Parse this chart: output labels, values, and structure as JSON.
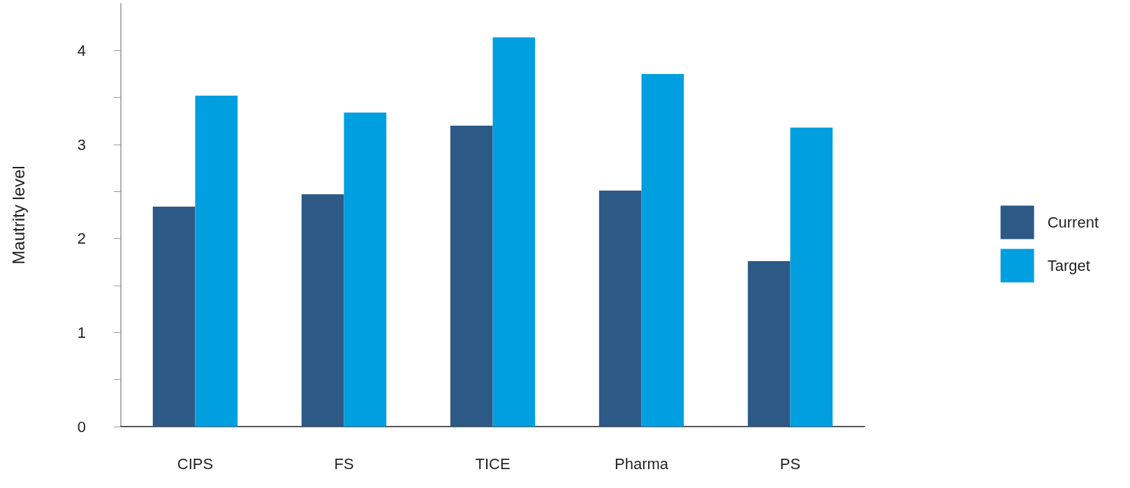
{
  "chart_data": {
    "type": "bar",
    "ylabel": "Mautrity level",
    "categories": [
      "CIPS",
      "FS",
      "TICE",
      "Pharma",
      "PS"
    ],
    "series": [
      {
        "name": "Current",
        "color": "#2d5986",
        "values": [
          2.34,
          2.47,
          3.2,
          2.51,
          1.76
        ]
      },
      {
        "name": "Target",
        "color": "#009fdf",
        "values": [
          3.52,
          3.34,
          4.14,
          3.75,
          3.18
        ]
      }
    ],
    "ylim": [
      0,
      4.5
    ],
    "yticks": [
      0,
      {
        "value": 0.5,
        "label": null
      },
      1,
      {
        "value": 1.5,
        "label": null
      },
      2,
      {
        "value": 2.5,
        "label": null
      },
      3,
      {
        "value": 3.5,
        "label": null
      },
      4
    ],
    "grid": false,
    "legend": "right"
  }
}
